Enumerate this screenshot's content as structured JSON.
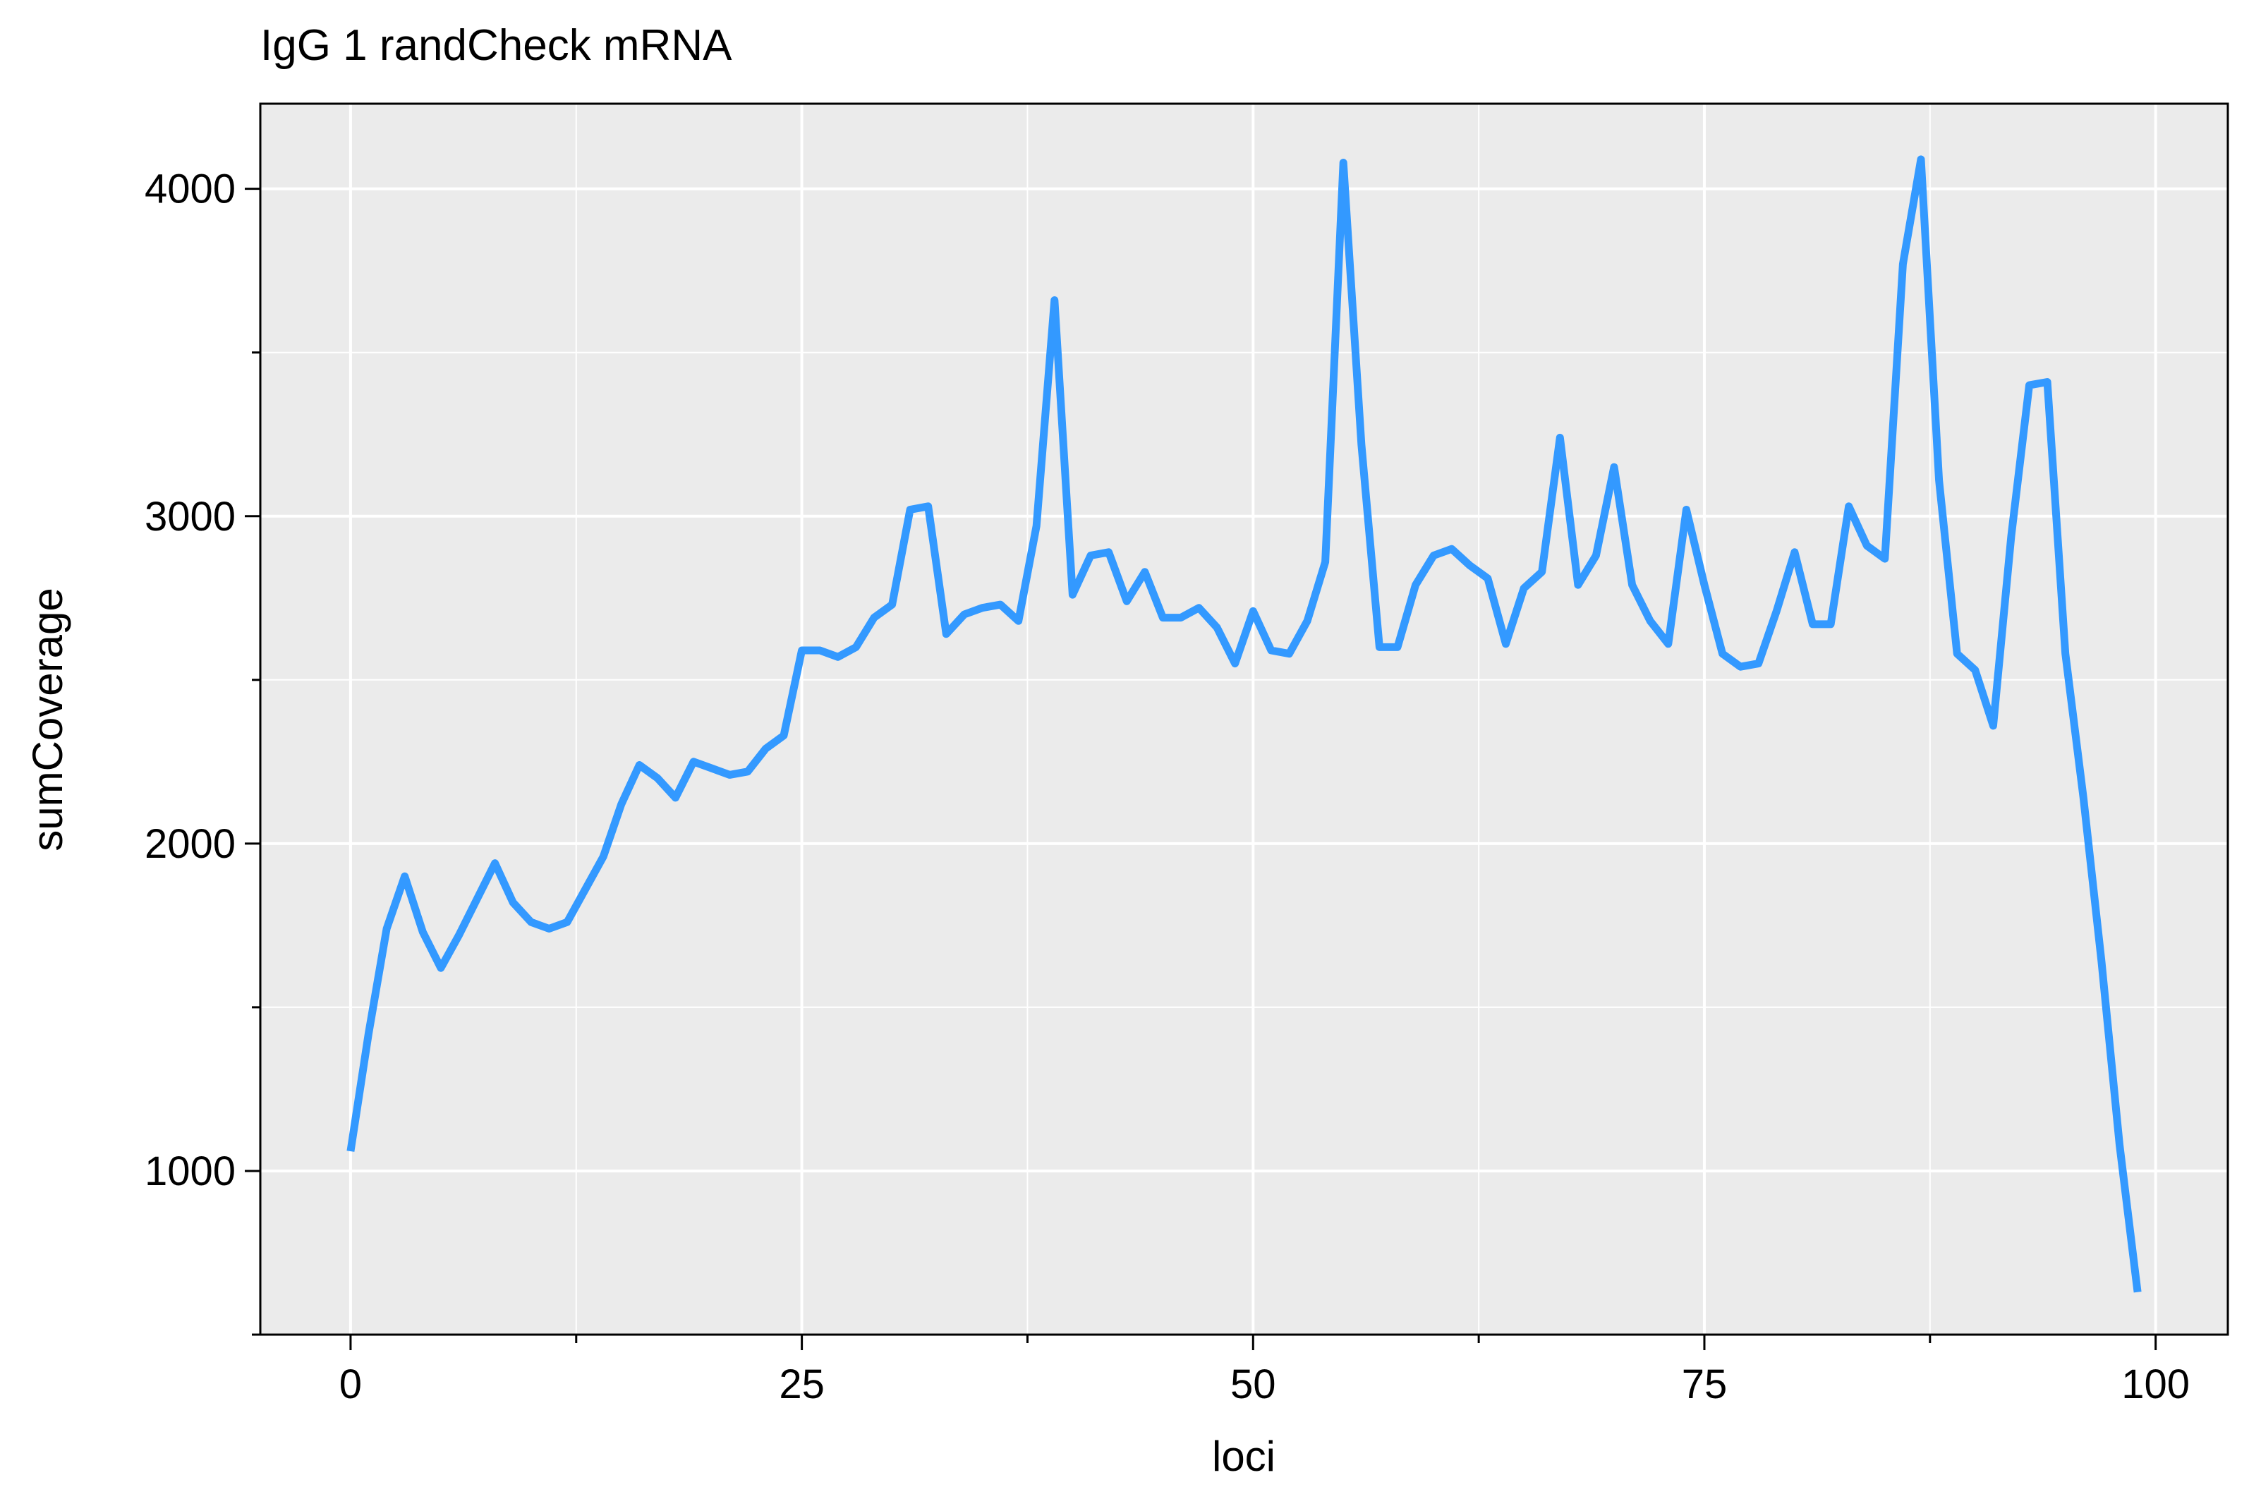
{
  "chart_data": {
    "type": "line",
    "title": "IgG 1 randCheck mRNA",
    "xlabel": "loci",
    "ylabel": "sumCoverage",
    "xlim": [
      -5,
      104
    ],
    "ylim": [
      500,
      4260
    ],
    "x_ticks": [
      0,
      25,
      50,
      75,
      100
    ],
    "x_tick_labels": [
      "0",
      "25",
      "50",
      "75",
      "100"
    ],
    "y_ticks": [
      1000,
      2000,
      3000,
      4000
    ],
    "y_tick_labels": [
      "1000",
      "2000",
      "3000",
      "4000"
    ],
    "grid": true,
    "line_color": "#3399ff",
    "panel_background": "#ebebeb",
    "grid_color": "#ffffff",
    "x": [
      0,
      1,
      2,
      3,
      4,
      5,
      6,
      7,
      8,
      9,
      10,
      11,
      12,
      13,
      14,
      15,
      16,
      17,
      18,
      19,
      20,
      21,
      22,
      23,
      24,
      25,
      26,
      27,
      28,
      29,
      30,
      31,
      32,
      33,
      34,
      35,
      36,
      37,
      38,
      39,
      40,
      41,
      42,
      43,
      44,
      45,
      46,
      47,
      48,
      49,
      50,
      51,
      52,
      53,
      54,
      55,
      56,
      57,
      58,
      59,
      60,
      61,
      62,
      63,
      64,
      65,
      66,
      67,
      68,
      69,
      70,
      71,
      72,
      73,
      74,
      75,
      76,
      77,
      78,
      79,
      80,
      81,
      82,
      83,
      84,
      85,
      86,
      87,
      88,
      89,
      90,
      91,
      92,
      93,
      94,
      95,
      96,
      97,
      98,
      99
    ],
    "values": [
      1060,
      1420,
      1740,
      1900,
      1730,
      1620,
      1720,
      1830,
      1940,
      1820,
      1760,
      1740,
      1760,
      1860,
      1960,
      2120,
      2240,
      2200,
      2140,
      2250,
      2230,
      2210,
      2220,
      2290,
      2330,
      2590,
      2590,
      2570,
      2600,
      2690,
      2730,
      3020,
      3030,
      2640,
      2700,
      2720,
      2730,
      2680,
      2970,
      3660,
      2760,
      2880,
      2890,
      2740,
      2830,
      2690,
      2690,
      2720,
      2660,
      2550,
      2710,
      2590,
      2580,
      2680,
      2860,
      4080,
      3220,
      2600,
      2600,
      2790,
      2880,
      2900,
      2850,
      2810,
      2610,
      2780,
      2830,
      3240,
      2790,
      2880,
      3150,
      2790,
      2680,
      2610,
      3020,
      2790,
      2580,
      2540,
      2550,
      2710,
      2890,
      2670,
      2670,
      3030,
      2910,
      2870,
      3770,
      4090,
      3110,
      2580,
      2530,
      2360,
      2940,
      3400,
      3410,
      2580,
      2140,
      1640,
      1080,
      630
    ]
  }
}
